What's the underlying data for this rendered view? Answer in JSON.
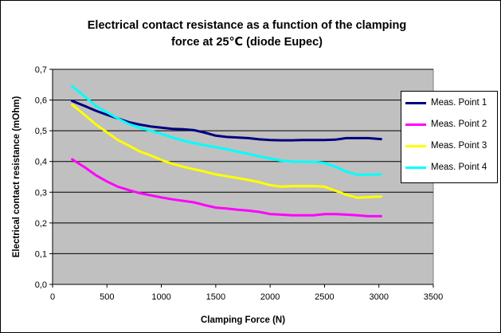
{
  "chart_data": {
    "type": "line",
    "title_line1": "Electrical contact resistance as a function of the clamping",
    "title_line2": "force at 25℃ (diode Eupec)",
    "xlabel": "Clamping Force (N)",
    "ylabel": "Electrical contact resistance (mOhm)",
    "xlim": [
      0,
      3500
    ],
    "ylim": [
      0,
      0.7
    ],
    "x_ticks": [
      "0",
      "500",
      "1000",
      "1500",
      "2000",
      "2500",
      "3000",
      "3500"
    ],
    "y_ticks": [
      "0,0",
      "0,1",
      "0,2",
      "0,3",
      "0,4",
      "0,5",
      "0,6",
      "0,7"
    ],
    "grid": true,
    "legend_position": "right",
    "plot_background": "#c0c0c0",
    "series": [
      {
        "name": "Meas. Point 1",
        "color": "#000080",
        "points": [
          [
            180,
            0.597
          ],
          [
            300,
            0.58
          ],
          [
            400,
            0.565
          ],
          [
            500,
            0.552
          ],
          [
            600,
            0.54
          ],
          [
            700,
            0.528
          ],
          [
            800,
            0.52
          ],
          [
            900,
            0.514
          ],
          [
            1000,
            0.51
          ],
          [
            1100,
            0.506
          ],
          [
            1200,
            0.505
          ],
          [
            1300,
            0.502
          ],
          [
            1400,
            0.494
          ],
          [
            1500,
            0.484
          ],
          [
            1600,
            0.48
          ],
          [
            1700,
            0.478
          ],
          [
            1800,
            0.476
          ],
          [
            1900,
            0.472
          ],
          [
            2000,
            0.47
          ],
          [
            2100,
            0.469
          ],
          [
            2200,
            0.469
          ],
          [
            2300,
            0.47
          ],
          [
            2400,
            0.47
          ],
          [
            2500,
            0.47
          ],
          [
            2600,
            0.471
          ],
          [
            2700,
            0.476
          ],
          [
            2800,
            0.476
          ],
          [
            2900,
            0.476
          ],
          [
            3020,
            0.473
          ]
        ]
      },
      {
        "name": "Meas. Point 2",
        "color": "#ff00ff",
        "points": [
          [
            180,
            0.407
          ],
          [
            300,
            0.38
          ],
          [
            400,
            0.355
          ],
          [
            500,
            0.335
          ],
          [
            600,
            0.318
          ],
          [
            700,
            0.307
          ],
          [
            800,
            0.297
          ],
          [
            900,
            0.29
          ],
          [
            1000,
            0.283
          ],
          [
            1100,
            0.277
          ],
          [
            1200,
            0.272
          ],
          [
            1300,
            0.267
          ],
          [
            1400,
            0.258
          ],
          [
            1500,
            0.25
          ],
          [
            1600,
            0.247
          ],
          [
            1700,
            0.243
          ],
          [
            1800,
            0.24
          ],
          [
            1900,
            0.236
          ],
          [
            2000,
            0.229
          ],
          [
            2100,
            0.227
          ],
          [
            2200,
            0.225
          ],
          [
            2300,
            0.225
          ],
          [
            2400,
            0.225
          ],
          [
            2500,
            0.229
          ],
          [
            2600,
            0.229
          ],
          [
            2700,
            0.227
          ],
          [
            2800,
            0.225
          ],
          [
            2900,
            0.222
          ],
          [
            3020,
            0.222
          ]
        ]
      },
      {
        "name": "Meas. Point 3",
        "color": "#ffff00",
        "points": [
          [
            180,
            0.585
          ],
          [
            300,
            0.55
          ],
          [
            400,
            0.52
          ],
          [
            500,
            0.495
          ],
          [
            600,
            0.47
          ],
          [
            700,
            0.452
          ],
          [
            800,
            0.433
          ],
          [
            900,
            0.42
          ],
          [
            1000,
            0.405
          ],
          [
            1100,
            0.393
          ],
          [
            1200,
            0.383
          ],
          [
            1300,
            0.375
          ],
          [
            1400,
            0.367
          ],
          [
            1500,
            0.358
          ],
          [
            1600,
            0.352
          ],
          [
            1700,
            0.346
          ],
          [
            1800,
            0.34
          ],
          [
            1900,
            0.333
          ],
          [
            2000,
            0.323
          ],
          [
            2100,
            0.318
          ],
          [
            2200,
            0.32
          ],
          [
            2300,
            0.32
          ],
          [
            2400,
            0.32
          ],
          [
            2500,
            0.318
          ],
          [
            2600,
            0.305
          ],
          [
            2700,
            0.292
          ],
          [
            2800,
            0.282
          ],
          [
            2900,
            0.284
          ],
          [
            3020,
            0.286
          ]
        ]
      },
      {
        "name": "Meas. Point 4",
        "color": "#00ffff",
        "points": [
          [
            180,
            0.645
          ],
          [
            300,
            0.61
          ],
          [
            400,
            0.58
          ],
          [
            500,
            0.56
          ],
          [
            600,
            0.54
          ],
          [
            700,
            0.522
          ],
          [
            800,
            0.51
          ],
          [
            900,
            0.5
          ],
          [
            1000,
            0.49
          ],
          [
            1100,
            0.478
          ],
          [
            1200,
            0.468
          ],
          [
            1300,
            0.46
          ],
          [
            1400,
            0.453
          ],
          [
            1500,
            0.447
          ],
          [
            1600,
            0.44
          ],
          [
            1700,
            0.432
          ],
          [
            1800,
            0.425
          ],
          [
            1900,
            0.417
          ],
          [
            2000,
            0.41
          ],
          [
            2100,
            0.403
          ],
          [
            2200,
            0.4
          ],
          [
            2300,
            0.399
          ],
          [
            2400,
            0.399
          ],
          [
            2500,
            0.395
          ],
          [
            2600,
            0.383
          ],
          [
            2700,
            0.367
          ],
          [
            2800,
            0.357
          ],
          [
            2900,
            0.357
          ],
          [
            3020,
            0.358
          ]
        ]
      }
    ]
  }
}
